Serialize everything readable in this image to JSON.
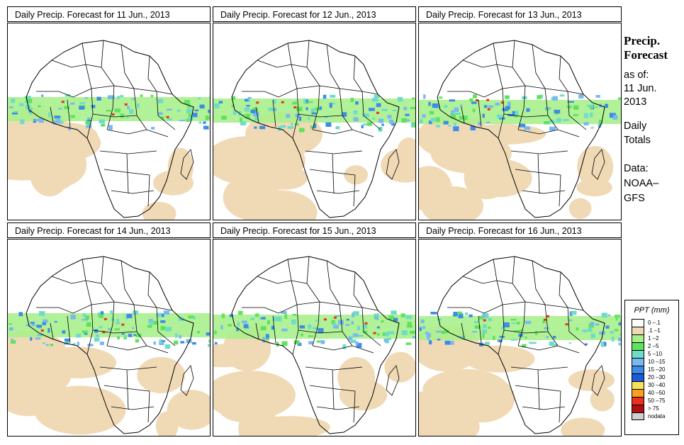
{
  "panels": [
    {
      "title": "Daily Precip. Forecast for  11 Jun., 2013"
    },
    {
      "title": "Daily Precip. Forecast for  12 Jun., 2013"
    },
    {
      "title": "Daily Precip. Forecast for  13 Jun., 2013"
    },
    {
      "title": "Daily Precip. Forecast for  14 Jun., 2013"
    },
    {
      "title": "Daily Precip. Forecast for  15 Jun., 2013"
    },
    {
      "title": "Daily Precip. Forecast for  16 Jun., 2013"
    }
  ],
  "side": {
    "heading1": "Precip.",
    "heading2": "Forecast",
    "asof": "as of:",
    "date1": "11 Jun.",
    "date2": "2013",
    "totals1": "Daily",
    "totals2": "Totals",
    "data1": "Data:",
    "data2": "NOAA–",
    "data3": "GFS"
  },
  "legend": {
    "title": "PPT (mm)",
    "items": [
      {
        "label": "0 –.1",
        "color": "#ffffff"
      },
      {
        "label": ".1 –1",
        "color": "#f0d9b5"
      },
      {
        "label": "1 –2",
        "color": "#a8f08c"
      },
      {
        "label": "2 –5",
        "color": "#5ee35e"
      },
      {
        "label": "5 –10",
        "color": "#6fdcc8"
      },
      {
        "label": "10 –15",
        "color": "#7ab8f0"
      },
      {
        "label": "15 –20",
        "color": "#3c8ce8"
      },
      {
        "label": "20 –30",
        "color": "#1c5ad8"
      },
      {
        "label": "30 –40",
        "color": "#f7e05a"
      },
      {
        "label": "40 –50",
        "color": "#f5a020"
      },
      {
        "label": "50 –75",
        "color": "#e8321e"
      },
      {
        "label": "> 75",
        "color": "#b01010"
      },
      {
        "label": "nodata",
        "color": "#cfcfcf"
      }
    ]
  }
}
